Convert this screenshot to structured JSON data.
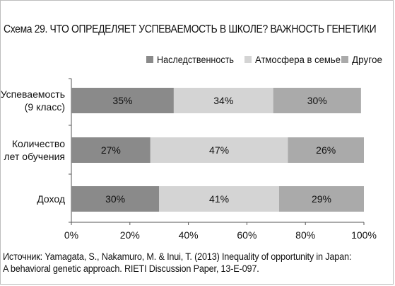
{
  "title": "Схема 29. ЧТО ОПРЕДЕЛЯЕТ УСПЕВАЕМОСТЬ В ШКОЛЕ? ВАЖНОСТЬ ГЕНЕТИКИ",
  "source_lines": [
    "Источник: Yamagata, S., Nakamuro, M. & Inui, T. (2013) Inequality of opportunity in Japan:",
    "A behavioral genetic approach. RIETI Discussion Paper, 13-E-097."
  ],
  "colors": {
    "heredity": "#8a8a8a",
    "family": "#d4d4d4",
    "other": "#aaaaaa"
  },
  "chart_data": {
    "type": "bar",
    "orientation": "horizontal",
    "stacked": true,
    "categories": [
      [
        "Успеваемость",
        "(9 класс)"
      ],
      [
        "Количество",
        "лет обучения"
      ],
      [
        "Доход"
      ]
    ],
    "series": [
      {
        "name": "Наследственность",
        "color_key": "heredity",
        "values": [
          35,
          27,
          30
        ],
        "labels": [
          "35%",
          "27%",
          "30%"
        ]
      },
      {
        "name": "Атмосфера в семье",
        "color_key": "family",
        "values": [
          34,
          47,
          41
        ],
        "labels": [
          "34%",
          "47%",
          "41%"
        ]
      },
      {
        "name": "Другое",
        "color_key": "other",
        "values": [
          30,
          26,
          29
        ],
        "labels": [
          "30%",
          "26%",
          "29%"
        ]
      }
    ],
    "xlim": [
      0,
      100
    ],
    "xticks": [
      {
        "value": 0,
        "label": "0%"
      },
      {
        "value": 20,
        "label": "20%"
      },
      {
        "value": 40,
        "label": "40%"
      },
      {
        "value": 60,
        "label": "60%"
      },
      {
        "value": 80,
        "label": "80%"
      },
      {
        "value": 100,
        "label": "100%"
      }
    ],
    "legend_position": "top-right",
    "grid": false
  }
}
